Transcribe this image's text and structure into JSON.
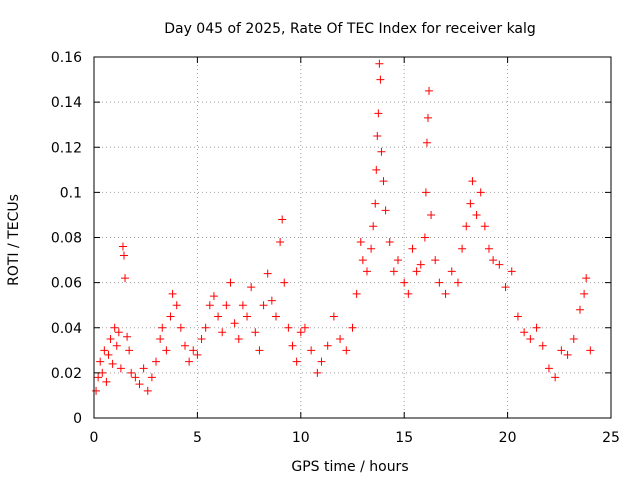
{
  "chart_data": {
    "type": "scatter",
    "title": "Day 045 of 2025, Rate Of TEC Index for receiver kalg",
    "xlabel": "GPS time / hours",
    "ylabel": "ROTI / TECUs",
    "xlim": [
      0,
      25
    ],
    "ylim": [
      0,
      0.16
    ],
    "x_ticks": [
      0,
      5,
      10,
      15,
      20,
      25
    ],
    "x_tick_labels": [
      "0",
      "5",
      "10",
      "15",
      "20",
      "25"
    ],
    "y_ticks": [
      0,
      0.02,
      0.04,
      0.06,
      0.08,
      0.1,
      0.12,
      0.14,
      0.16
    ],
    "y_tick_labels": [
      "0",
      "0.02",
      "0.04",
      "0.06",
      "0.08",
      "0.1",
      "0.12",
      "0.14",
      "0.16"
    ],
    "grid": true,
    "marker": "+",
    "marker_color": "#ff0000",
    "series": [
      {
        "name": "ROTI",
        "points": [
          [
            0.1,
            0.012
          ],
          [
            0.2,
            0.018
          ],
          [
            0.3,
            0.025
          ],
          [
            0.4,
            0.02
          ],
          [
            0.5,
            0.03
          ],
          [
            0.6,
            0.016
          ],
          [
            0.7,
            0.028
          ],
          [
            0.8,
            0.035
          ],
          [
            0.9,
            0.024
          ],
          [
            1.0,
            0.04
          ],
          [
            1.1,
            0.032
          ],
          [
            1.2,
            0.038
          ],
          [
            1.3,
            0.022
          ],
          [
            1.4,
            0.076
          ],
          [
            1.45,
            0.072
          ],
          [
            1.5,
            0.062
          ],
          [
            1.6,
            0.036
          ],
          [
            1.7,
            0.03
          ],
          [
            1.8,
            0.02
          ],
          [
            2.0,
            0.018
          ],
          [
            2.2,
            0.015
          ],
          [
            2.4,
            0.022
          ],
          [
            2.6,
            0.012
          ],
          [
            2.8,
            0.018
          ],
          [
            3.0,
            0.025
          ],
          [
            3.2,
            0.035
          ],
          [
            3.3,
            0.04
          ],
          [
            3.5,
            0.03
          ],
          [
            3.7,
            0.045
          ],
          [
            3.8,
            0.055
          ],
          [
            4.0,
            0.05
          ],
          [
            4.2,
            0.04
          ],
          [
            4.4,
            0.032
          ],
          [
            4.6,
            0.025
          ],
          [
            4.8,
            0.03
          ],
          [
            5.0,
            0.028
          ],
          [
            5.2,
            0.035
          ],
          [
            5.4,
            0.04
          ],
          [
            5.6,
            0.05
          ],
          [
            5.8,
            0.054
          ],
          [
            6.0,
            0.045
          ],
          [
            6.2,
            0.038
          ],
          [
            6.4,
            0.05
          ],
          [
            6.6,
            0.06
          ],
          [
            6.8,
            0.042
          ],
          [
            7.0,
            0.035
          ],
          [
            7.2,
            0.05
          ],
          [
            7.4,
            0.045
          ],
          [
            7.6,
            0.058
          ],
          [
            7.8,
            0.038
          ],
          [
            8.0,
            0.03
          ],
          [
            8.2,
            0.05
          ],
          [
            8.4,
            0.064
          ],
          [
            8.6,
            0.052
          ],
          [
            8.8,
            0.045
          ],
          [
            9.0,
            0.078
          ],
          [
            9.1,
            0.088
          ],
          [
            9.2,
            0.06
          ],
          [
            9.4,
            0.04
          ],
          [
            9.6,
            0.032
          ],
          [
            9.8,
            0.025
          ],
          [
            10.0,
            0.038
          ],
          [
            10.2,
            0.04
          ],
          [
            10.5,
            0.03
          ],
          [
            10.8,
            0.02
          ],
          [
            11.0,
            0.025
          ],
          [
            11.3,
            0.032
          ],
          [
            11.6,
            0.045
          ],
          [
            11.9,
            0.035
          ],
          [
            12.2,
            0.03
          ],
          [
            12.5,
            0.04
          ],
          [
            12.7,
            0.055
          ],
          [
            12.9,
            0.078
          ],
          [
            13.0,
            0.07
          ],
          [
            13.2,
            0.065
          ],
          [
            13.4,
            0.075
          ],
          [
            13.5,
            0.085
          ],
          [
            13.6,
            0.095
          ],
          [
            13.65,
            0.11
          ],
          [
            13.7,
            0.125
          ],
          [
            13.75,
            0.135
          ],
          [
            13.8,
            0.157
          ],
          [
            13.85,
            0.15
          ],
          [
            13.9,
            0.118
          ],
          [
            14.0,
            0.105
          ],
          [
            14.1,
            0.092
          ],
          [
            14.3,
            0.078
          ],
          [
            14.5,
            0.065
          ],
          [
            14.7,
            0.07
          ],
          [
            15.0,
            0.06
          ],
          [
            15.2,
            0.055
          ],
          [
            15.4,
            0.075
          ],
          [
            15.6,
            0.065
          ],
          [
            15.8,
            0.068
          ],
          [
            16.0,
            0.08
          ],
          [
            16.05,
            0.1
          ],
          [
            16.1,
            0.122
          ],
          [
            16.15,
            0.133
          ],
          [
            16.2,
            0.145
          ],
          [
            16.3,
            0.09
          ],
          [
            16.5,
            0.07
          ],
          [
            16.7,
            0.06
          ],
          [
            17.0,
            0.055
          ],
          [
            17.3,
            0.065
          ],
          [
            17.6,
            0.06
          ],
          [
            17.8,
            0.075
          ],
          [
            18.0,
            0.085
          ],
          [
            18.2,
            0.095
          ],
          [
            18.3,
            0.105
          ],
          [
            18.5,
            0.09
          ],
          [
            18.7,
            0.1
          ],
          [
            18.9,
            0.085
          ],
          [
            19.1,
            0.075
          ],
          [
            19.3,
            0.07
          ],
          [
            19.6,
            0.068
          ],
          [
            19.9,
            0.058
          ],
          [
            20.2,
            0.065
          ],
          [
            20.5,
            0.045
          ],
          [
            20.8,
            0.038
          ],
          [
            21.1,
            0.035
          ],
          [
            21.4,
            0.04
          ],
          [
            21.7,
            0.032
          ],
          [
            22.0,
            0.022
          ],
          [
            22.3,
            0.018
          ],
          [
            22.6,
            0.03
          ],
          [
            22.9,
            0.028
          ],
          [
            23.2,
            0.035
          ],
          [
            23.5,
            0.048
          ],
          [
            23.7,
            0.055
          ],
          [
            23.8,
            0.062
          ],
          [
            24.0,
            0.03
          ]
        ]
      }
    ]
  }
}
